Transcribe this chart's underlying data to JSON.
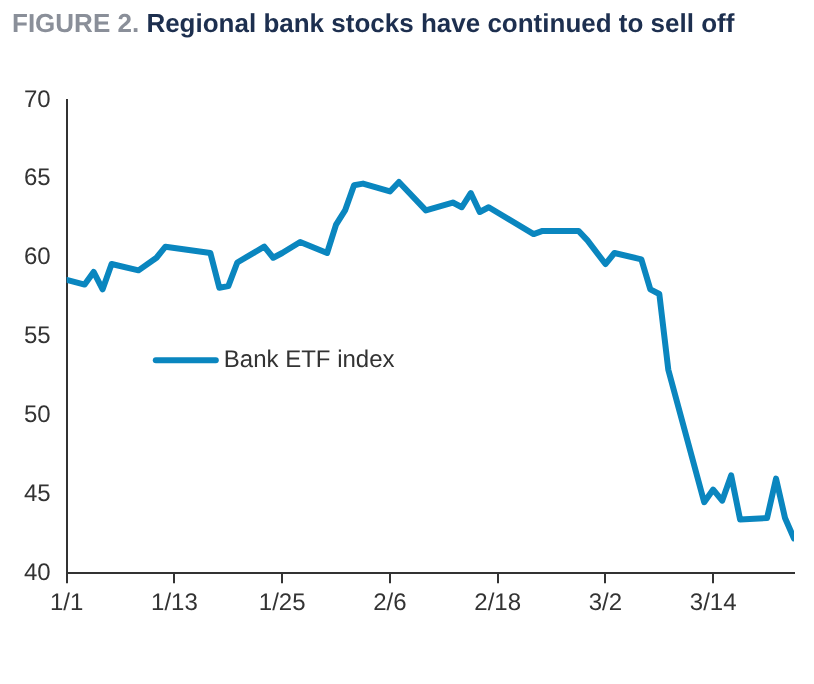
{
  "chart_data": {
    "type": "line",
    "title": "FIGURE 2. Regional bank stocks have continued to sell off",
    "x": [
      "--01-01",
      "--01-03",
      "--01-04",
      "--01-05",
      "--01-06",
      "--01-09",
      "--01-11",
      "--01-12",
      "--01-17",
      "--01-18",
      "--01-19",
      "--01-20",
      "--01-23",
      "--01-24",
      "--01-25",
      "--01-27",
      "--01-30",
      "--01-31",
      "--02-01",
      "--02-02",
      "--02-03",
      "--02-06",
      "--02-07",
      "--02-10",
      "--02-13",
      "--02-14",
      "--02-15",
      "--02-16",
      "--02-17",
      "--02-22",
      "--02-23",
      "--02-27",
      "--02-28",
      "--03-02",
      "--03-03",
      "--03-06",
      "--03-07",
      "--03-08",
      "--03-09",
      "--03-13",
      "--03-14",
      "--03-15",
      "--03-16",
      "--03-17",
      "--03-20",
      "--03-21",
      "--03-22",
      "--03-23"
    ],
    "series": [
      {
        "name": "Bank ETF index",
        "color": "#0a86bf",
        "values": [
          58.6,
          58.3,
          59.1,
          58.0,
          59.6,
          59.2,
          60.0,
          60.7,
          60.3,
          58.1,
          58.2,
          59.7,
          60.7,
          60.0,
          60.3,
          61.0,
          60.3,
          62.1,
          63.0,
          64.6,
          64.7,
          64.2,
          64.8,
          63.0,
          63.5,
          63.2,
          64.1,
          62.9,
          63.2,
          61.5,
          61.7,
          61.7,
          61.1,
          59.6,
          60.3,
          59.9,
          58.0,
          57.7,
          52.9,
          44.5,
          45.3,
          44.6,
          46.2,
          43.4,
          43.5,
          46.0,
          43.5,
          42.2
        ]
      }
    ],
    "xlim": [
      "--01-01",
      "--03-23"
    ],
    "xticks": [
      {
        "value": "--01-01",
        "label": "1/1"
      },
      {
        "value": "--01-13",
        "label": "1/13"
      },
      {
        "value": "--01-25",
        "label": "1/25"
      },
      {
        "value": "--02-06",
        "label": "2/6"
      },
      {
        "value": "--02-18",
        "label": "2/18"
      },
      {
        "value": "--03-02",
        "label": "3/2"
      },
      {
        "value": "--03-14",
        "label": "3/14"
      }
    ],
    "ylim": [
      40,
      70
    ],
    "yticks": [
      40,
      45,
      50,
      55,
      60,
      65,
      70
    ],
    "grid": false,
    "legend": "center",
    "marker": "none",
    "line_style": "solid"
  }
}
